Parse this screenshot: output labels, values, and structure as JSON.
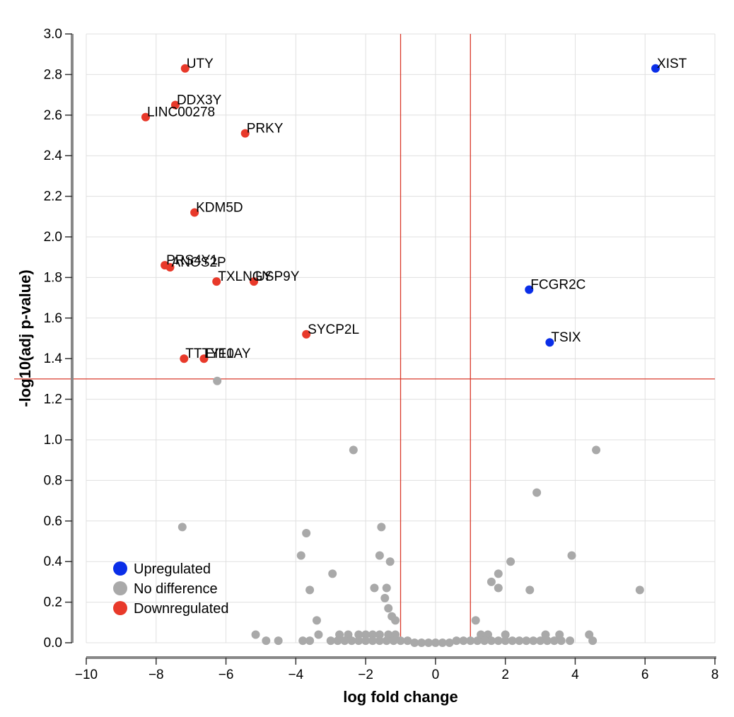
{
  "chart_data": {
    "type": "scatter",
    "xlabel": "log fold change",
    "ylabel": "-log10(adj p-value)",
    "xlim": [
      -10,
      8
    ],
    "ylim": [
      0,
      3.0
    ],
    "x_ticks": [
      -10,
      -8,
      -6,
      -4,
      -2,
      0,
      2,
      4,
      6,
      8
    ],
    "x_tick_labels": [
      "−10",
      "−8",
      "−6",
      "−4",
      "−2",
      "0",
      "2",
      "4",
      "6",
      "8"
    ],
    "y_ticks": [
      0,
      0.2,
      0.4,
      0.6,
      0.8,
      1.0,
      1.2,
      1.4,
      1.6,
      1.8,
      2.0,
      2.2,
      2.4,
      2.6,
      2.8,
      3.0
    ],
    "y_tick_labels": [
      "0.0",
      "0.2",
      "0.4",
      "0.6",
      "0.8",
      "1.0",
      "1.2",
      "1.4",
      "1.6",
      "1.8",
      "2.0",
      "2.2",
      "2.4",
      "2.6",
      "2.8",
      "3.0"
    ],
    "grid": true,
    "thresholds": {
      "x": [
        -1,
        1
      ],
      "y": 1.3,
      "color": "#d93a2b"
    },
    "legend": {
      "placement": "bottom-left",
      "entries": [
        {
          "label": "Upregulated",
          "color": "#0a2ee8"
        },
        {
          "label": "No difference",
          "color": "#a9a9a9"
        },
        {
          "label": "Downregulated",
          "color": "#e8392a"
        }
      ]
    },
    "series": [
      {
        "name": "Upregulated",
        "color": "#0a2ee8",
        "points": [
          {
            "x": 6.3,
            "y": 2.83,
            "label": "XIST"
          },
          {
            "x": 2.68,
            "y": 1.74,
            "label": "FCGR2C"
          },
          {
            "x": 3.27,
            "y": 1.48,
            "label": "TSIX"
          }
        ]
      },
      {
        "name": "Downregulated",
        "color": "#e8392a",
        "points": [
          {
            "x": -7.17,
            "y": 2.83,
            "label": "UTY"
          },
          {
            "x": -7.45,
            "y": 2.65,
            "label": "DDX3Y"
          },
          {
            "x": -8.3,
            "y": 2.59,
            "label": "LINC00278"
          },
          {
            "x": -5.45,
            "y": 2.51,
            "label": "PRKY"
          },
          {
            "x": -6.9,
            "y": 2.12,
            "label": "KDM5D"
          },
          {
            "x": -7.75,
            "y": 1.86,
            "label": "PRS4Y1"
          },
          {
            "x": -7.6,
            "y": 1.85,
            "label": "ANOS2P"
          },
          {
            "x": -6.27,
            "y": 1.78,
            "label": "TXLNGY"
          },
          {
            "x": -5.2,
            "y": 1.78,
            "label": "USP9Y"
          },
          {
            "x": -3.7,
            "y": 1.52,
            "label": "SYCP2L"
          },
          {
            "x": -7.2,
            "y": 1.4,
            "label": "TTTY10"
          },
          {
            "x": -6.63,
            "y": 1.4,
            "label": "EIF1AY"
          }
        ]
      },
      {
        "name": "No difference",
        "color": "#a9a9a9",
        "points": [
          {
            "x": -6.25,
            "y": 1.29
          },
          {
            "x": -2.35,
            "y": 0.95
          },
          {
            "x": 4.6,
            "y": 0.95
          },
          {
            "x": 2.9,
            "y": 0.74
          },
          {
            "x": -7.25,
            "y": 0.57
          },
          {
            "x": -1.55,
            "y": 0.57
          },
          {
            "x": -3.7,
            "y": 0.54
          },
          {
            "x": -3.85,
            "y": 0.43
          },
          {
            "x": -1.6,
            "y": 0.43
          },
          {
            "x": 3.9,
            "y": 0.43
          },
          {
            "x": -1.3,
            "y": 0.4
          },
          {
            "x": 2.15,
            "y": 0.4
          },
          {
            "x": -2.95,
            "y": 0.34
          },
          {
            "x": 1.8,
            "y": 0.34
          },
          {
            "x": 1.6,
            "y": 0.3
          },
          {
            "x": -3.6,
            "y": 0.26
          },
          {
            "x": -1.75,
            "y": 0.27
          },
          {
            "x": -1.4,
            "y": 0.27
          },
          {
            "x": 1.8,
            "y": 0.27
          },
          {
            "x": 2.7,
            "y": 0.26
          },
          {
            "x": 5.85,
            "y": 0.26
          },
          {
            "x": -1.45,
            "y": 0.22
          },
          {
            "x": -1.35,
            "y": 0.17
          },
          {
            "x": -1.25,
            "y": 0.13
          },
          {
            "x": -1.15,
            "y": 0.11
          },
          {
            "x": -3.4,
            "y": 0.11
          },
          {
            "x": 1.15,
            "y": 0.11
          },
          {
            "x": -5.15,
            "y": 0.04
          },
          {
            "x": -3.35,
            "y": 0.04
          },
          {
            "x": -2.75,
            "y": 0.04
          },
          {
            "x": -2.5,
            "y": 0.04
          },
          {
            "x": -2.2,
            "y": 0.04
          },
          {
            "x": -2.0,
            "y": 0.04
          },
          {
            "x": -1.8,
            "y": 0.04
          },
          {
            "x": -1.6,
            "y": 0.04
          },
          {
            "x": -1.35,
            "y": 0.04
          },
          {
            "x": -1.15,
            "y": 0.04
          },
          {
            "x": 1.3,
            "y": 0.04
          },
          {
            "x": 1.5,
            "y": 0.04
          },
          {
            "x": 2.0,
            "y": 0.04
          },
          {
            "x": 3.15,
            "y": 0.04
          },
          {
            "x": 3.55,
            "y": 0.04
          },
          {
            "x": 4.4,
            "y": 0.04
          },
          {
            "x": -4.85,
            "y": 0.01
          },
          {
            "x": -4.5,
            "y": 0.01
          },
          {
            "x": -3.8,
            "y": 0.01
          },
          {
            "x": -3.6,
            "y": 0.01
          },
          {
            "x": -3.0,
            "y": 0.01
          },
          {
            "x": -2.8,
            "y": 0.01
          },
          {
            "x": -2.6,
            "y": 0.01
          },
          {
            "x": -2.4,
            "y": 0.01
          },
          {
            "x": -2.2,
            "y": 0.01
          },
          {
            "x": -2.0,
            "y": 0.01
          },
          {
            "x": -1.8,
            "y": 0.01
          },
          {
            "x": -1.6,
            "y": 0.01
          },
          {
            "x": -1.4,
            "y": 0.01
          },
          {
            "x": -1.2,
            "y": 0.01
          },
          {
            "x": -1.0,
            "y": 0.01
          },
          {
            "x": -0.8,
            "y": 0.01
          },
          {
            "x": -0.6,
            "y": 0.0
          },
          {
            "x": -0.4,
            "y": 0.0
          },
          {
            "x": -0.2,
            "y": 0.0
          },
          {
            "x": 0.0,
            "y": 0.0
          },
          {
            "x": 0.2,
            "y": 0.0
          },
          {
            "x": 0.4,
            "y": 0.0
          },
          {
            "x": 0.6,
            "y": 0.01
          },
          {
            "x": 0.8,
            "y": 0.01
          },
          {
            "x": 1.0,
            "y": 0.01
          },
          {
            "x": 1.2,
            "y": 0.01
          },
          {
            "x": 1.4,
            "y": 0.01
          },
          {
            "x": 1.6,
            "y": 0.01
          },
          {
            "x": 1.8,
            "y": 0.01
          },
          {
            "x": 2.0,
            "y": 0.01
          },
          {
            "x": 2.2,
            "y": 0.01
          },
          {
            "x": 2.4,
            "y": 0.01
          },
          {
            "x": 2.6,
            "y": 0.01
          },
          {
            "x": 2.8,
            "y": 0.01
          },
          {
            "x": 3.0,
            "y": 0.01
          },
          {
            "x": 3.2,
            "y": 0.01
          },
          {
            "x": 3.4,
            "y": 0.01
          },
          {
            "x": 3.6,
            "y": 0.01
          },
          {
            "x": 3.85,
            "y": 0.01
          },
          {
            "x": 4.5,
            "y": 0.01
          }
        ]
      }
    ]
  }
}
